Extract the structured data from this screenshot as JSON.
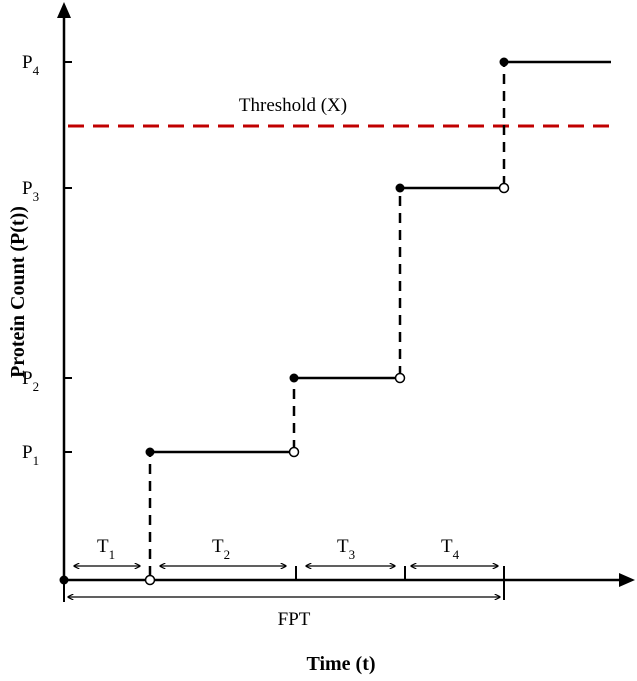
{
  "chart_data": {
    "type": "line",
    "title": "",
    "xlabel": "Time (t)",
    "ylabel": "Protein Count (P(t))",
    "y_levels": [
      {
        "base": "P",
        "sub": "1"
      },
      {
        "base": "P",
        "sub": "2"
      },
      {
        "base": "P",
        "sub": "3"
      },
      {
        "base": "P",
        "sub": "4"
      }
    ],
    "threshold": {
      "label": "Threshold (X)",
      "color": "#c00000",
      "style": "dashed"
    },
    "waiting_times": [
      {
        "base": "T",
        "sub": "1"
      },
      {
        "base": "T",
        "sub": "2"
      },
      {
        "base": "T",
        "sub": "3"
      },
      {
        "base": "T",
        "sub": "4"
      }
    ],
    "total_span_label": "FPT",
    "line_color": "#000000",
    "grid": false
  }
}
